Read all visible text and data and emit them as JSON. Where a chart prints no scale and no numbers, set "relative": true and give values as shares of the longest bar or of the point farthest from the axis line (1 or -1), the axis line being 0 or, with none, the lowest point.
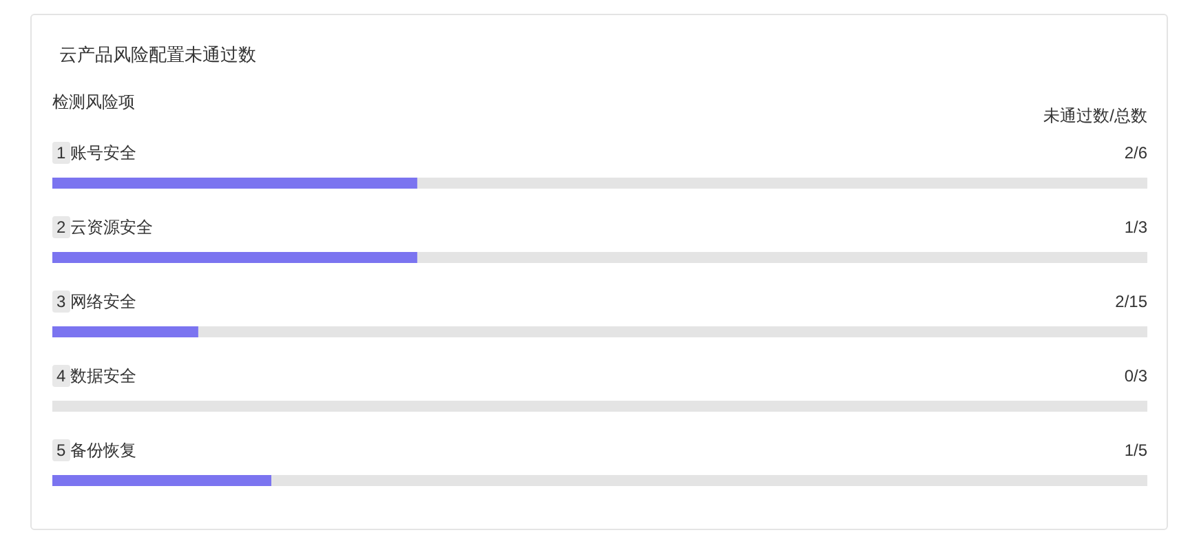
{
  "chart_data": {
    "type": "bar",
    "orientation": "horizontal",
    "stacked": true,
    "relative": true,
    "title": "云产品风险配置未通过数",
    "ylabel": "检测风险项",
    "y2label": "未通过数/总数",
    "categories": [
      "1 账号安全",
      "2 云资源安全",
      "3 网络安全",
      "4 数据安全",
      "5 备份恢复"
    ],
    "series": [
      {
        "color": "#7b74f0",
        "values": [
          0.3333,
          0.3333,
          0.1333,
          0,
          0.2
        ]
      },
      {
        "color": "#e4e4e4",
        "values": [
          0.6667,
          0.6667,
          0.8667,
          1,
          0.8
        ]
      }
    ],
    "annotations": [
      {
        "text": "2/6",
        "y": "1 账号安全"
      },
      {
        "text": "1/3",
        "y": "2 云资源安全"
      },
      {
        "text": "2/15",
        "y": "3 网络安全"
      },
      {
        "text": "0/3",
        "y": "4 数据安全"
      },
      {
        "text": "1/5",
        "y": "5 备份恢复"
      }
    ],
    "tick_labels": false
  }
}
